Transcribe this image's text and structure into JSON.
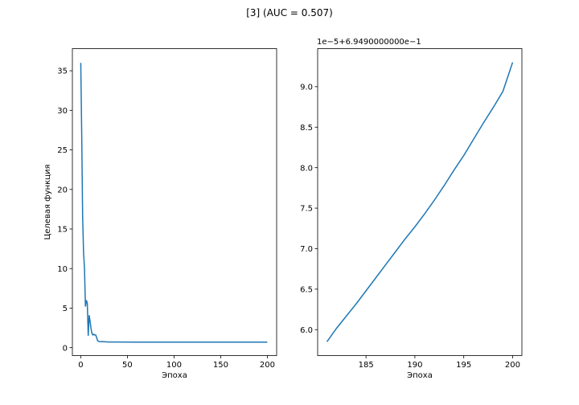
{
  "figure": {
    "suptitle": "[3] (AUC = 0.507)"
  },
  "chart_data": [
    {
      "type": "line",
      "title": "",
      "xlabel": "Эпоха",
      "ylabel": "Целевая функция",
      "xlim": [
        -9,
        210
      ],
      "ylim": [
        -1.0,
        37.8
      ],
      "xticks": [
        0,
        50,
        100,
        150,
        200
      ],
      "yticks": [
        0,
        5,
        10,
        15,
        20,
        25,
        30,
        35
      ],
      "color": "#1f77b4",
      "grid": false,
      "series": [
        {
          "x": [
            0,
            1,
            2,
            3,
            4,
            5,
            6,
            7,
            8,
            9,
            10,
            11,
            12,
            13,
            14,
            15,
            16,
            17,
            18,
            19,
            20,
            22,
            25,
            30,
            40,
            60,
            100,
            150,
            200
          ],
          "y": [
            36.0,
            27.0,
            16.5,
            12.0,
            10.0,
            5.2,
            6.0,
            5.6,
            1.5,
            4.1,
            3.3,
            2.4,
            1.8,
            1.6,
            1.7,
            1.6,
            1.6,
            1.3,
            0.9,
            0.8,
            0.78,
            0.77,
            0.75,
            0.72,
            0.71,
            0.7,
            0.7,
            0.7,
            0.7
          ]
        }
      ]
    },
    {
      "type": "line",
      "title": "",
      "xlabel": "Эпоха",
      "ylabel": "",
      "offset_text": "1e−5+6.9490000000e−1",
      "xlim": [
        180.05,
        200.95
      ],
      "ylim": [
        5.68,
        9.47
      ],
      "xticks": [
        185,
        190,
        195,
        200
      ],
      "yticks": [
        "6.0",
        "6.5",
        "7.0",
        "7.5",
        "8.0",
        "8.5",
        "9.0"
      ],
      "color": "#1f77b4",
      "grid": false,
      "series": [
        {
          "x": [
            181,
            182,
            183,
            184,
            185,
            186,
            187,
            188,
            189,
            190,
            191,
            192,
            193,
            194,
            195,
            196,
            197,
            198,
            199,
            200
          ],
          "y": [
            5.85,
            6.02,
            6.17,
            6.32,
            6.48,
            6.64,
            6.8,
            6.96,
            7.12,
            7.27,
            7.43,
            7.6,
            7.78,
            7.97,
            8.15,
            8.35,
            8.55,
            8.74,
            8.94,
            9.3
          ]
        }
      ]
    }
  ]
}
